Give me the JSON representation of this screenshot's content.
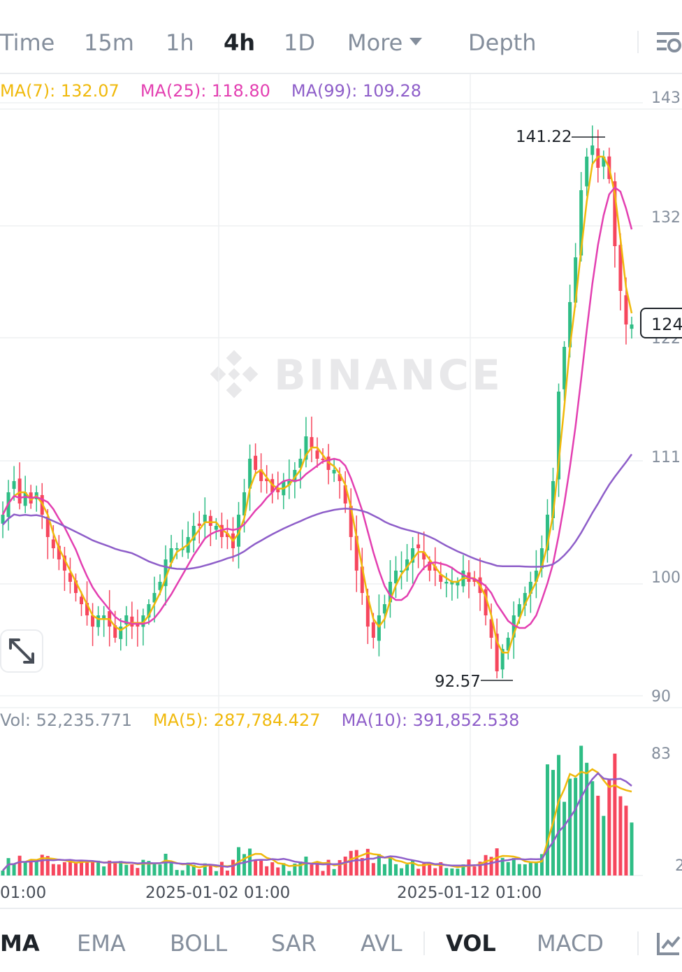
{
  "tabs": [
    {
      "label": "Time",
      "active": false
    },
    {
      "label": "15m",
      "active": false
    },
    {
      "label": "1h",
      "active": false
    },
    {
      "label": "4h",
      "active": true
    },
    {
      "label": "1D",
      "active": false
    },
    {
      "label": "More",
      "active": false
    },
    {
      "label": "Depth",
      "active": false
    }
  ],
  "settings_icon": "chart-settings-icon",
  "price_ma": {
    "ma7": "MA(7): 132.07",
    "ma25": "MA(25): 118.80",
    "ma99": "MA(99): 109.28"
  },
  "volume_ma": {
    "vol": "Vol: 52,235.771",
    "ma5": "MA(5): 287,784.427",
    "ma10": "MA(10): 391,852.538"
  },
  "colors": {
    "up": "#2ebd85",
    "down": "#f6465d",
    "ma7": "#f0b90b",
    "ma25": "#e33fb1",
    "ma99": "#8e5ec9",
    "watermark": "#e8e8ea"
  },
  "watermark": "BINANCE",
  "last_price": "124",
  "high_label": "141.22",
  "low_label": "92.57",
  "expand_icon": "expand-icon",
  "chart_data": {
    "type": "candlestick",
    "interval": "4h",
    "price_axis_ticks": [
      "143",
      "132",
      "122",
      "111",
      "100",
      "90"
    ],
    "price_axis_values": [
      143,
      132,
      122,
      111,
      100,
      90
    ],
    "volume_axis_ticks": [
      "83",
      "2"
    ],
    "x_ticks": [
      "01:00",
      "2025-01-02 01:00",
      "2025-01-12 01:00"
    ],
    "price_range": [
      90,
      143
    ],
    "high": 141.22,
    "low": 92.57,
    "last": 124,
    "ma7_last": 132.07,
    "ma25_last": 118.8,
    "ma99_last": 109.28,
    "vol_last": 52235.771,
    "vol_ma5_last": 287784.427,
    "vol_ma10_last": 391852.538,
    "closes": [
      107,
      109,
      110,
      108,
      109,
      108,
      109,
      107,
      105,
      104,
      103,
      102,
      101,
      100,
      99,
      98,
      97,
      98,
      98,
      97,
      96,
      97,
      98,
      97,
      97,
      98,
      99,
      100,
      101,
      103,
      104,
      104,
      104,
      105,
      106,
      106,
      107,
      106,
      106,
      105,
      105,
      104,
      107,
      109,
      112,
      111,
      110,
      110,
      109,
      109,
      110,
      110,
      111,
      112,
      114,
      113,
      112,
      112,
      111,
      111,
      110,
      108,
      105,
      102,
      100,
      97,
      96,
      98,
      99,
      101,
      102,
      102,
      103,
      104,
      104,
      103,
      102,
      102,
      101,
      101,
      101,
      101,
      102,
      101,
      101,
      100,
      98,
      96,
      93,
      95,
      96,
      98,
      99,
      100,
      101,
      102,
      104,
      107,
      110,
      118,
      122,
      126,
      130,
      136,
      139,
      140,
      138,
      139,
      137,
      131,
      127,
      124,
      124
    ],
    "volume_ma_description": "MA(5) and MA(10) overlays on volume bars"
  },
  "indicators": [
    {
      "label": "MA",
      "active": true
    },
    {
      "label": "EMA",
      "active": false
    },
    {
      "label": "BOLL",
      "active": false
    },
    {
      "label": "SAR",
      "active": false
    },
    {
      "label": "AVL",
      "active": false
    },
    {
      "label": "VOL",
      "active": true
    },
    {
      "label": "MACD",
      "active": false
    }
  ],
  "indicator_icon": "indicator-settings-icon"
}
